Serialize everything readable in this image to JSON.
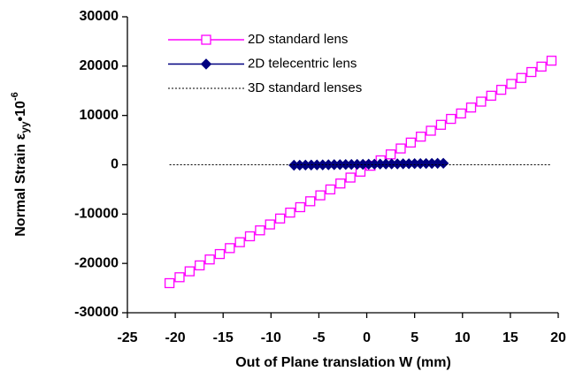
{
  "chart_data": {
    "type": "line",
    "x_label": "Out of Plane translation  W (mm)",
    "y_label": {
      "text": "Normal Strain  ",
      "symbol": "ε",
      "subscript": "yy",
      "factor": "•10",
      "exponent": "-6"
    },
    "xlim": [
      -25,
      20
    ],
    "xticks": [
      -25,
      -20,
      -15,
      -10,
      -5,
      0,
      5,
      10,
      15,
      20
    ],
    "ylim": [
      -30000,
      30000
    ],
    "yticks": [
      -30000,
      -20000,
      -10000,
      0,
      10000,
      20000,
      30000
    ],
    "legend": "upper-left",
    "series": [
      {
        "name": "2D standard lens",
        "color": "#ff00ff",
        "marker": "square",
        "dashed": false,
        "x": [
          -20.6,
          -19.55,
          -18.5,
          -17.45,
          -16.4,
          -15.35,
          -14.3,
          -13.25,
          -12.2,
          -11.15,
          -10.1,
          -9.05,
          -8,
          -6.95,
          -5.9,
          -4.85,
          -3.8,
          -2.75,
          -1.7,
          -0.65,
          0.4,
          1.45,
          2.5,
          3.55,
          4.6,
          5.65,
          6.7,
          7.75,
          8.8,
          9.85,
          10.9,
          11.95,
          13,
          14.05,
          15.1,
          16.15,
          17.2,
          18.25,
          19.3
        ],
        "values": [
          -24000,
          -22800,
          -21600,
          -20400,
          -19200,
          -18100,
          -16900,
          -15700,
          -14500,
          -13300,
          -12100,
          -10900,
          -9700,
          -8600,
          -7400,
          -6200,
          -5000,
          -3800,
          -2600,
          -1400,
          -200,
          900,
          2100,
          3300,
          4500,
          5700,
          6900,
          8100,
          9300,
          10400,
          11600,
          12800,
          14000,
          15200,
          16400,
          17600,
          18800,
          19900,
          21100
        ]
      },
      {
        "name": "2D telecentric lens",
        "color": "#000080",
        "marker": "diamond",
        "dashed": false,
        "x": [
          -7.6,
          -7,
          -6.4,
          -5.8,
          -5.2,
          -4.6,
          -4,
          -3.4,
          -2.8,
          -2.2,
          -1.6,
          -1,
          -0.4,
          0.2,
          0.8,
          1.4,
          2,
          2.6,
          3.2,
          3.8,
          4.4,
          5,
          5.6,
          6.2,
          6.8,
          7.4,
          8
        ],
        "values": [
          -90,
          -80,
          -60,
          -50,
          -30,
          -20,
          0,
          20,
          30,
          50,
          60,
          80,
          90,
          110,
          120,
          140,
          150,
          170,
          180,
          200,
          210,
          230,
          240,
          260,
          270,
          290,
          300
        ]
      },
      {
        "name": "3D standard lenses",
        "color": "#000000",
        "marker": null,
        "dashed": true,
        "x": [
          -20.6,
          19.3
        ],
        "values": [
          0,
          0
        ]
      }
    ]
  }
}
